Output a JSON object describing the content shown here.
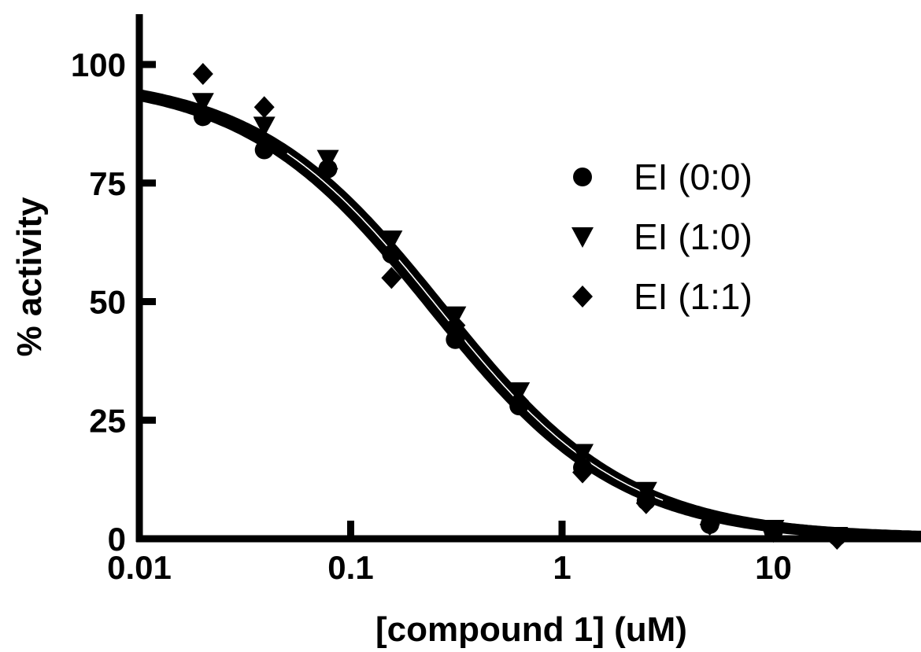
{
  "chart_data": {
    "type": "scatter",
    "xlabel": "[compound 1] (uM)",
    "ylabel": "% activity",
    "xscale": "log",
    "xlim": [
      0.01,
      50
    ],
    "ylim": [
      0,
      110
    ],
    "x_ticks": [
      {
        "value": 0.01,
        "label": "0.01"
      },
      {
        "value": 0.1,
        "label": "0.1"
      },
      {
        "value": 1,
        "label": "1"
      },
      {
        "value": 10,
        "label": "10"
      }
    ],
    "y_ticks": [
      {
        "value": 0,
        "label": "0"
      },
      {
        "value": 25,
        "label": "25"
      },
      {
        "value": 50,
        "label": "50"
      },
      {
        "value": 75,
        "label": "75"
      },
      {
        "value": 100,
        "label": "100"
      }
    ],
    "grid": false,
    "legend_position": "right",
    "series": [
      {
        "name": "EI (0:0)",
        "marker": "circle",
        "x": [
          0.02,
          0.039,
          0.078,
          0.156,
          0.3125,
          0.625,
          1.25,
          2.5,
          5,
          10,
          20
        ],
        "y": [
          89,
          82,
          78,
          60,
          42,
          28,
          15,
          8,
          3,
          1.5,
          0.5
        ],
        "fit": {
          "top": 97.5,
          "bottom": 0,
          "ic50": 0.245,
          "hill": 0.98
        }
      },
      {
        "name": "EI (1:0)",
        "marker": "triangle-down",
        "x": [
          0.02,
          0.039,
          0.078,
          0.156,
          0.3125,
          0.625,
          1.25,
          2.5,
          5,
          10,
          20
        ],
        "y": [
          92,
          87,
          80,
          63,
          47,
          31,
          18,
          10,
          3.5,
          2,
          0.5
        ],
        "fit": {
          "top": 97.5,
          "bottom": 0,
          "ic50": 0.27,
          "hill": 0.98
        }
      },
      {
        "name": "EI (1:1)",
        "marker": "diamond",
        "x": [
          0.02,
          0.039,
          0.078,
          0.156,
          0.3125,
          0.625,
          1.25,
          2.5,
          5,
          10,
          20
        ],
        "y": [
          98,
          91,
          78,
          55,
          45,
          29,
          14,
          7.5,
          3,
          1.5,
          0
        ],
        "fit": {
          "top": 97.5,
          "bottom": 0,
          "ic50": 0.255,
          "hill": 0.98
        }
      }
    ]
  }
}
